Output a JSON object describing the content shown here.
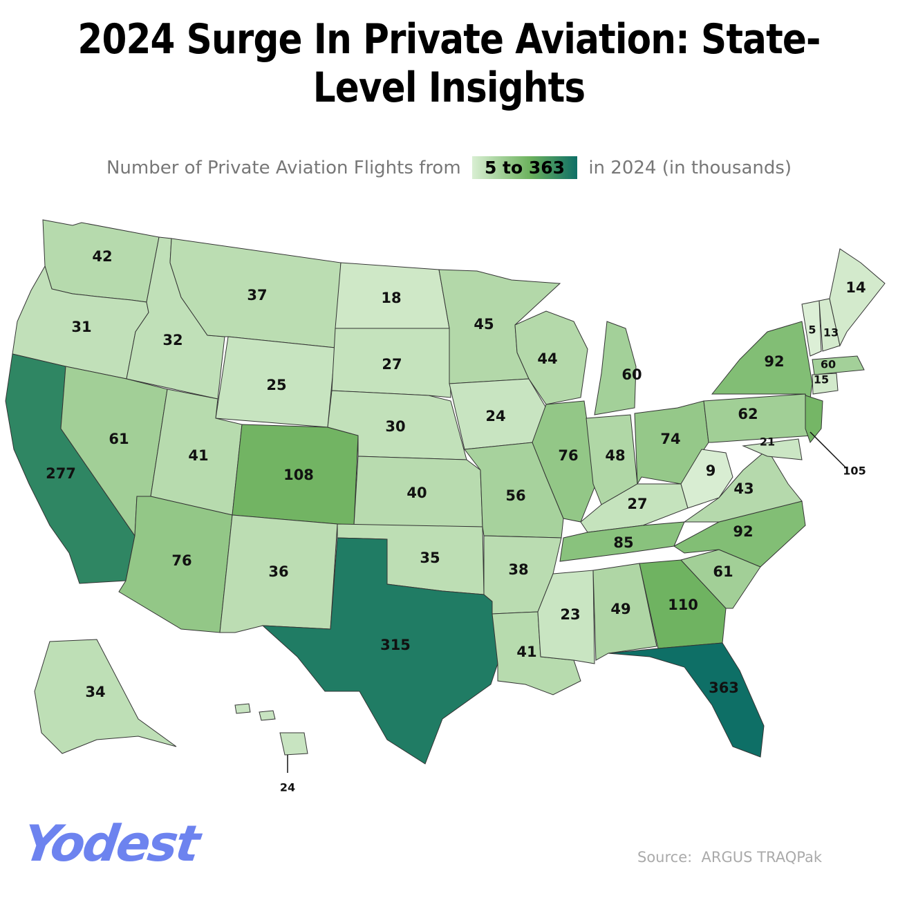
{
  "title": "2024 Surge In Private Aviation: State-Level Insights",
  "subtitle": {
    "prefix": "Number of Private Aviation Flights from",
    "range": "5 to 363",
    "suffix": "in 2024 (in thousands)"
  },
  "color_scale": {
    "min": 5,
    "max": 363,
    "low": "#dcefd6",
    "mid": "#6db25e",
    "high": "#0e6f66"
  },
  "chart_data": {
    "type": "choropleth",
    "states": [
      {
        "state": "WA",
        "value": 42
      },
      {
        "state": "OR",
        "value": 31
      },
      {
        "state": "CA",
        "value": 277
      },
      {
        "state": "ID",
        "value": 32
      },
      {
        "state": "NV",
        "value": 61
      },
      {
        "state": "MT",
        "value": 37
      },
      {
        "state": "WY",
        "value": 25
      },
      {
        "state": "UT",
        "value": 41
      },
      {
        "state": "AZ",
        "value": 76
      },
      {
        "state": "CO",
        "value": 108
      },
      {
        "state": "NM",
        "value": 36
      },
      {
        "state": "ND",
        "value": 18
      },
      {
        "state": "SD",
        "value": 27
      },
      {
        "state": "NE",
        "value": 30
      },
      {
        "state": "KS",
        "value": 40
      },
      {
        "state": "OK",
        "value": 35
      },
      {
        "state": "TX",
        "value": 315
      },
      {
        "state": "MN",
        "value": 45
      },
      {
        "state": "IA",
        "value": 24
      },
      {
        "state": "MO",
        "value": 56
      },
      {
        "state": "AR",
        "value": 38
      },
      {
        "state": "LA",
        "value": 41
      },
      {
        "state": "WI",
        "value": 44
      },
      {
        "state": "IL",
        "value": 76
      },
      {
        "state": "MI",
        "value": 60
      },
      {
        "state": "IN",
        "value": 48
      },
      {
        "state": "OH",
        "value": 74
      },
      {
        "state": "KY",
        "value": 27
      },
      {
        "state": "TN",
        "value": 85
      },
      {
        "state": "MS",
        "value": 23
      },
      {
        "state": "AL",
        "value": 49
      },
      {
        "state": "GA",
        "value": 110
      },
      {
        "state": "FL",
        "value": 363
      },
      {
        "state": "SC",
        "value": 61
      },
      {
        "state": "NC",
        "value": 92
      },
      {
        "state": "VA",
        "value": 43
      },
      {
        "state": "WV",
        "value": 9
      },
      {
        "state": "PA",
        "value": 62
      },
      {
        "state": "NY",
        "value": 92
      },
      {
        "state": "NJ",
        "value": 105
      },
      {
        "state": "MD",
        "value": 21
      },
      {
        "state": "MA",
        "value": 60
      },
      {
        "state": "CT",
        "value": 15
      },
      {
        "state": "VT",
        "value": 5
      },
      {
        "state": "NH",
        "value": 13
      },
      {
        "state": "ME",
        "value": 14
      },
      {
        "state": "AK",
        "value": 34
      },
      {
        "state": "HI",
        "value": 24
      }
    ]
  },
  "logo_text": "Yodest",
  "source": "Source:  ARGUS TRAQPak"
}
